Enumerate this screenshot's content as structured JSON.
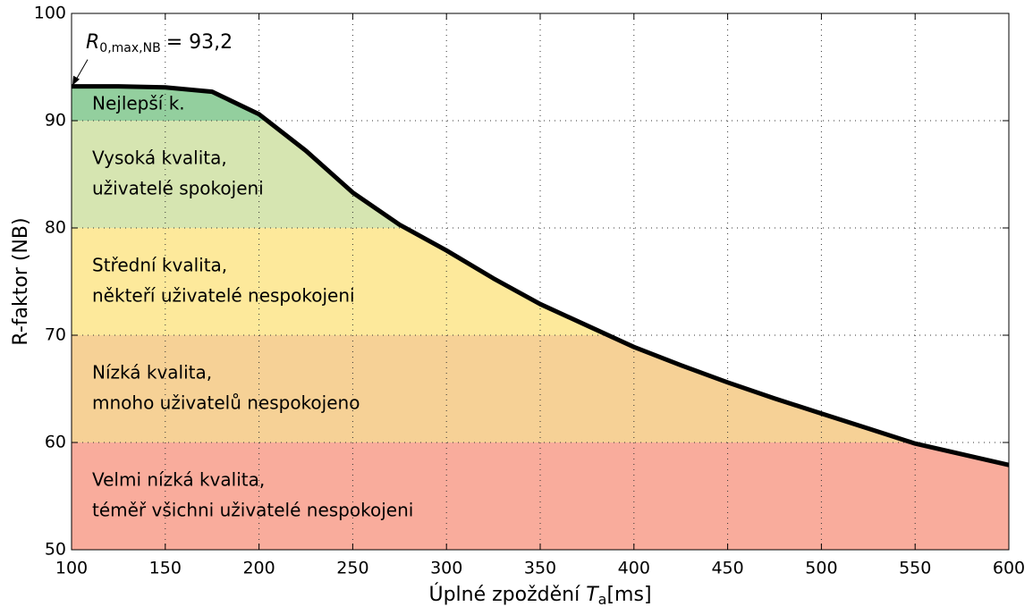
{
  "chart_data": {
    "type": "line",
    "x_label": {
      "text": "Úplné zpoždění",
      "symbol": "T",
      "subscript": "a",
      "unit": "[ms]"
    },
    "y_label": "R-faktor (NB)",
    "annotation": {
      "symbol": "R",
      "subscript": "0,max,NB",
      "text": "= 93,2"
    },
    "x": [
      100,
      125,
      150,
      175,
      200,
      225,
      250,
      275,
      300,
      325,
      350,
      375,
      400,
      425,
      450,
      475,
      500,
      525,
      550,
      575,
      600
    ],
    "series": [
      {
        "color": "#000000",
        "values": [
          93.2,
          93.2,
          93.1,
          92.7,
          90.6,
          87.2,
          83.3,
          80.3,
          77.9,
          75.3,
          72.9,
          70.9,
          68.9,
          67.2,
          65.6,
          64.1,
          62.7,
          61.3,
          59.9,
          58.9,
          57.9
        ]
      }
    ],
    "bands": [
      {
        "lower": 90,
        "upper": 93.2,
        "color": "#93cf9e",
        "lines": [
          "Nejlepší k."
        ]
      },
      {
        "lower": 80,
        "upper": 90,
        "color": "#d6e5b1",
        "lines": [
          "Vysoká kvalita,",
          "uživatelé spokojeni"
        ]
      },
      {
        "lower": 70,
        "upper": 80,
        "color": "#fde99b",
        "lines": [
          "Střední kvalita,",
          "někteří uživatelé nespokojeni"
        ]
      },
      {
        "lower": 60,
        "upper": 70,
        "color": "#f6d196",
        "lines": [
          "Nízká kvalita,",
          "mnoho uživatelů nespokojeno"
        ]
      },
      {
        "lower": 50,
        "upper": 60,
        "color": "#f9ac9c",
        "lines": [
          "Velmi nízká kvalita,",
          "téměř všichni uživatelé nespokojeni"
        ]
      }
    ],
    "xlim": [
      100,
      600
    ],
    "xticks": [
      100,
      150,
      200,
      250,
      300,
      350,
      400,
      450,
      500,
      550,
      600
    ],
    "ylim": [
      50,
      100
    ],
    "yticks": [
      50,
      60,
      70,
      80,
      90,
      100
    ],
    "grid": true
  }
}
